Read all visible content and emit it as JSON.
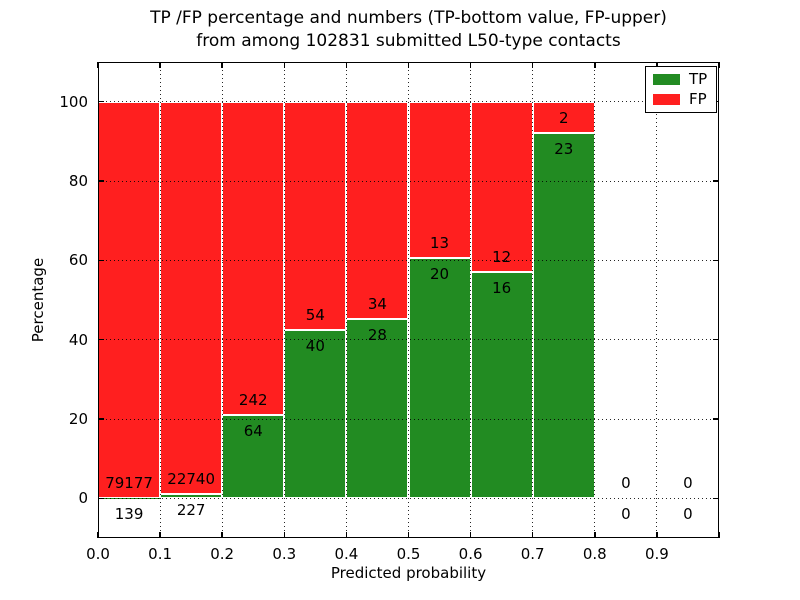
{
  "title": {
    "line1": "TP /FP percentage and numbers (TP-bottom value, FP-upper)",
    "line2": "from among 102831 submitted L50-type contacts"
  },
  "chart_data": {
    "type": "bar",
    "stacked": true,
    "title": "TP /FP percentage and numbers (TP-bottom value, FP-upper) from among 102831 submitted L50-type contacts",
    "xlabel": "Predicted probability",
    "ylabel": "Percentage",
    "xlim": [
      0.0,
      1.0
    ],
    "ylim": [
      -10,
      110
    ],
    "x_tick_labels": [
      "0.0",
      "0.1",
      "0.2",
      "0.3",
      "0.4",
      "0.5",
      "0.6",
      "0.7",
      "0.8",
      "0.9"
    ],
    "y_tick_values": [
      0,
      20,
      40,
      60,
      80,
      100
    ],
    "grid": {
      "style": "dotted",
      "color": "#000000"
    },
    "legend": {
      "position": "upper right",
      "entries": [
        {
          "label": "TP",
          "color": "#228b22"
        },
        {
          "label": "FP",
          "color": "#ff1f1f"
        }
      ]
    },
    "bins": [
      {
        "x_start": 0.0,
        "x_end": 0.1,
        "tp": 139,
        "fp": 79177
      },
      {
        "x_start": 0.1,
        "x_end": 0.2,
        "tp": 227,
        "fp": 22740
      },
      {
        "x_start": 0.2,
        "x_end": 0.3,
        "tp": 64,
        "fp": 242
      },
      {
        "x_start": 0.3,
        "x_end": 0.4,
        "tp": 40,
        "fp": 54
      },
      {
        "x_start": 0.4,
        "x_end": 0.5,
        "tp": 28,
        "fp": 34
      },
      {
        "x_start": 0.5,
        "x_end": 0.6,
        "tp": 20,
        "fp": 13
      },
      {
        "x_start": 0.6,
        "x_end": 0.7,
        "tp": 16,
        "fp": 12
      },
      {
        "x_start": 0.7,
        "x_end": 0.8,
        "tp": 23,
        "fp": 2
      },
      {
        "x_start": 0.8,
        "x_end": 0.9,
        "tp": 0,
        "fp": 0
      },
      {
        "x_start": 0.9,
        "x_end": 1.0,
        "tp": 0,
        "fp": 0
      }
    ]
  },
  "colors": {
    "tp_green": "#228b22",
    "fp_red": "#ff1f1f",
    "axis": "#000000",
    "background": "#ffffff"
  }
}
